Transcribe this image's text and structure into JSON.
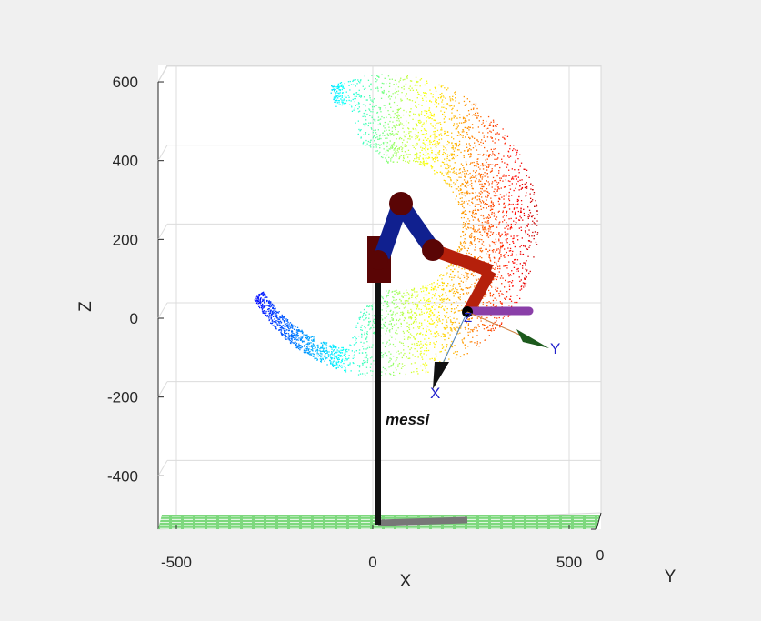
{
  "chart_data": {
    "type": "scatter",
    "subtype": "3d-robot-workspace",
    "title": "",
    "xlabel": "X",
    "ylabel": "Y",
    "zlabel": "Z",
    "view": "front (X-Z plane), Y axis into page",
    "xlim": [
      -550,
      550
    ],
    "zlim": [
      -530,
      600
    ],
    "x_ticks": [
      -500,
      0,
      500
    ],
    "x_tick_labels": [
      "-500",
      "0",
      "500"
    ],
    "z_ticks": [
      600,
      400,
      200,
      0,
      -200,
      -400
    ],
    "z_tick_labels": [
      "600",
      "400",
      "200",
      "0",
      "-200",
      "-400"
    ],
    "y_tick_labels": [
      "0"
    ],
    "grid": true,
    "colormap": "jet (colored by X)",
    "workspace_cloud": {
      "description": "reachable end-effector points",
      "x_range": [
        -420,
        470
      ],
      "z_range": [
        -100,
        620
      ]
    },
    "robot": {
      "name": "messi",
      "base_x": 10,
      "base_z": -520,
      "joints": [
        {
          "x": 10,
          "z": 150
        },
        {
          "x": 70,
          "z": 290
        },
        {
          "x": 150,
          "z": 170
        },
        {
          "x": 295,
          "z": 120
        },
        {
          "x": 240,
          "z": 15
        }
      ],
      "tool_frame_labels": [
        "X",
        "Y",
        "Z"
      ]
    },
    "colors": {
      "link_blue": "#10208f",
      "link_red": "#b5200b",
      "joint": "#5a0505",
      "base_pole": "#111111",
      "floor": "#7dd87d",
      "frame_text": "#2222cc"
    }
  }
}
